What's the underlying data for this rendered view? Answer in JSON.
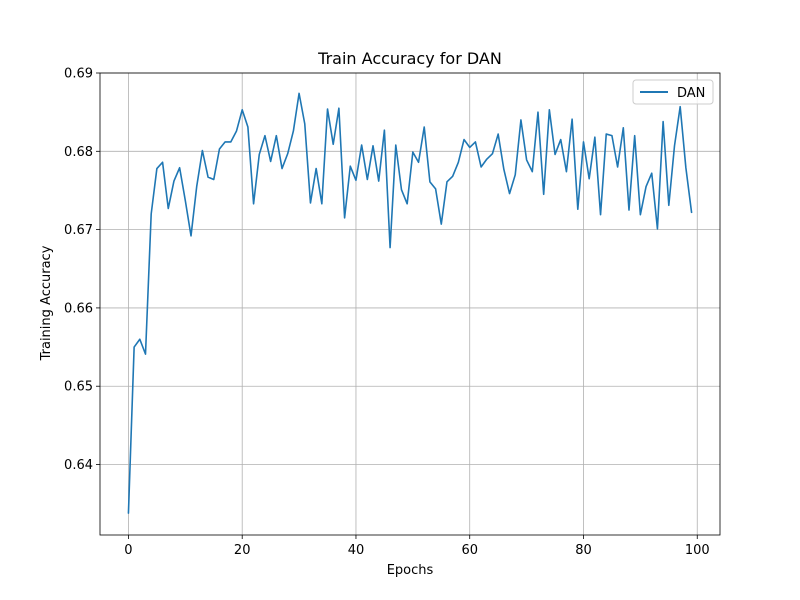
{
  "chart_data": {
    "type": "line",
    "title": "Train Accuracy for DAN",
    "xlabel": "Epochs",
    "ylabel": "Training Accuracy",
    "xlim": [
      -5,
      104
    ],
    "ylim": [
      0.631,
      0.69
    ],
    "xticks": [
      0,
      20,
      40,
      60,
      80,
      100
    ],
    "xtick_labels": [
      "0",
      "20",
      "40",
      "60",
      "80",
      "100"
    ],
    "yticks": [
      0.64,
      0.65,
      0.66,
      0.67,
      0.68,
      0.69
    ],
    "ytick_labels": [
      "0.64",
      "0.65",
      "0.66",
      "0.67",
      "0.68",
      "0.69"
    ],
    "grid": true,
    "legend": "top-right",
    "colors": {
      "series": "#1f77b4",
      "grid": "#b0b0b0",
      "axis": "#000000"
    },
    "series": [
      {
        "name": "DAN",
        "x": [
          0,
          1,
          2,
          3,
          4,
          5,
          6,
          7,
          8,
          9,
          10,
          11,
          12,
          13,
          14,
          15,
          16,
          17,
          18,
          19,
          20,
          21,
          22,
          23,
          24,
          25,
          26,
          27,
          28,
          29,
          30,
          31,
          32,
          33,
          34,
          35,
          36,
          37,
          38,
          39,
          40,
          41,
          42,
          43,
          44,
          45,
          46,
          47,
          48,
          49,
          50,
          51,
          52,
          53,
          54,
          55,
          56,
          57,
          58,
          59,
          60,
          61,
          62,
          63,
          64,
          65,
          66,
          67,
          68,
          69,
          70,
          71,
          72,
          73,
          74,
          75,
          76,
          77,
          78,
          79,
          80,
          81,
          82,
          83,
          84,
          85,
          86,
          87,
          88,
          89,
          90,
          91,
          92,
          93,
          94,
          95,
          96,
          97,
          98,
          99
        ],
        "y": [
          0.6338,
          0.655,
          0.656,
          0.6541,
          0.672,
          0.6778,
          0.6786,
          0.6727,
          0.6762,
          0.6779,
          0.6737,
          0.6692,
          0.6755,
          0.6801,
          0.6767,
          0.6764,
          0.6803,
          0.6812,
          0.6812,
          0.6826,
          0.6853,
          0.6831,
          0.6733,
          0.6796,
          0.682,
          0.6787,
          0.682,
          0.6778,
          0.6797,
          0.6826,
          0.6874,
          0.6835,
          0.6734,
          0.6778,
          0.6733,
          0.6854,
          0.6809,
          0.6855,
          0.6715,
          0.6781,
          0.6763,
          0.6808,
          0.6764,
          0.6807,
          0.6762,
          0.6827,
          0.6677,
          0.6808,
          0.6751,
          0.6733,
          0.6799,
          0.6786,
          0.6831,
          0.6761,
          0.6752,
          0.6707,
          0.6761,
          0.6768,
          0.6786,
          0.6815,
          0.6805,
          0.6812,
          0.678,
          0.679,
          0.6797,
          0.6822,
          0.6777,
          0.6746,
          0.677,
          0.684,
          0.6789,
          0.6774,
          0.685,
          0.6745,
          0.6853,
          0.6796,
          0.6815,
          0.6774,
          0.6841,
          0.6726,
          0.6812,
          0.6765,
          0.6818,
          0.6719,
          0.6822,
          0.682,
          0.678,
          0.683,
          0.6725,
          0.682,
          0.6719,
          0.6755,
          0.6772,
          0.6701,
          0.6838,
          0.6731,
          0.6807,
          0.6857,
          0.6779,
          0.6722
        ]
      }
    ]
  }
}
